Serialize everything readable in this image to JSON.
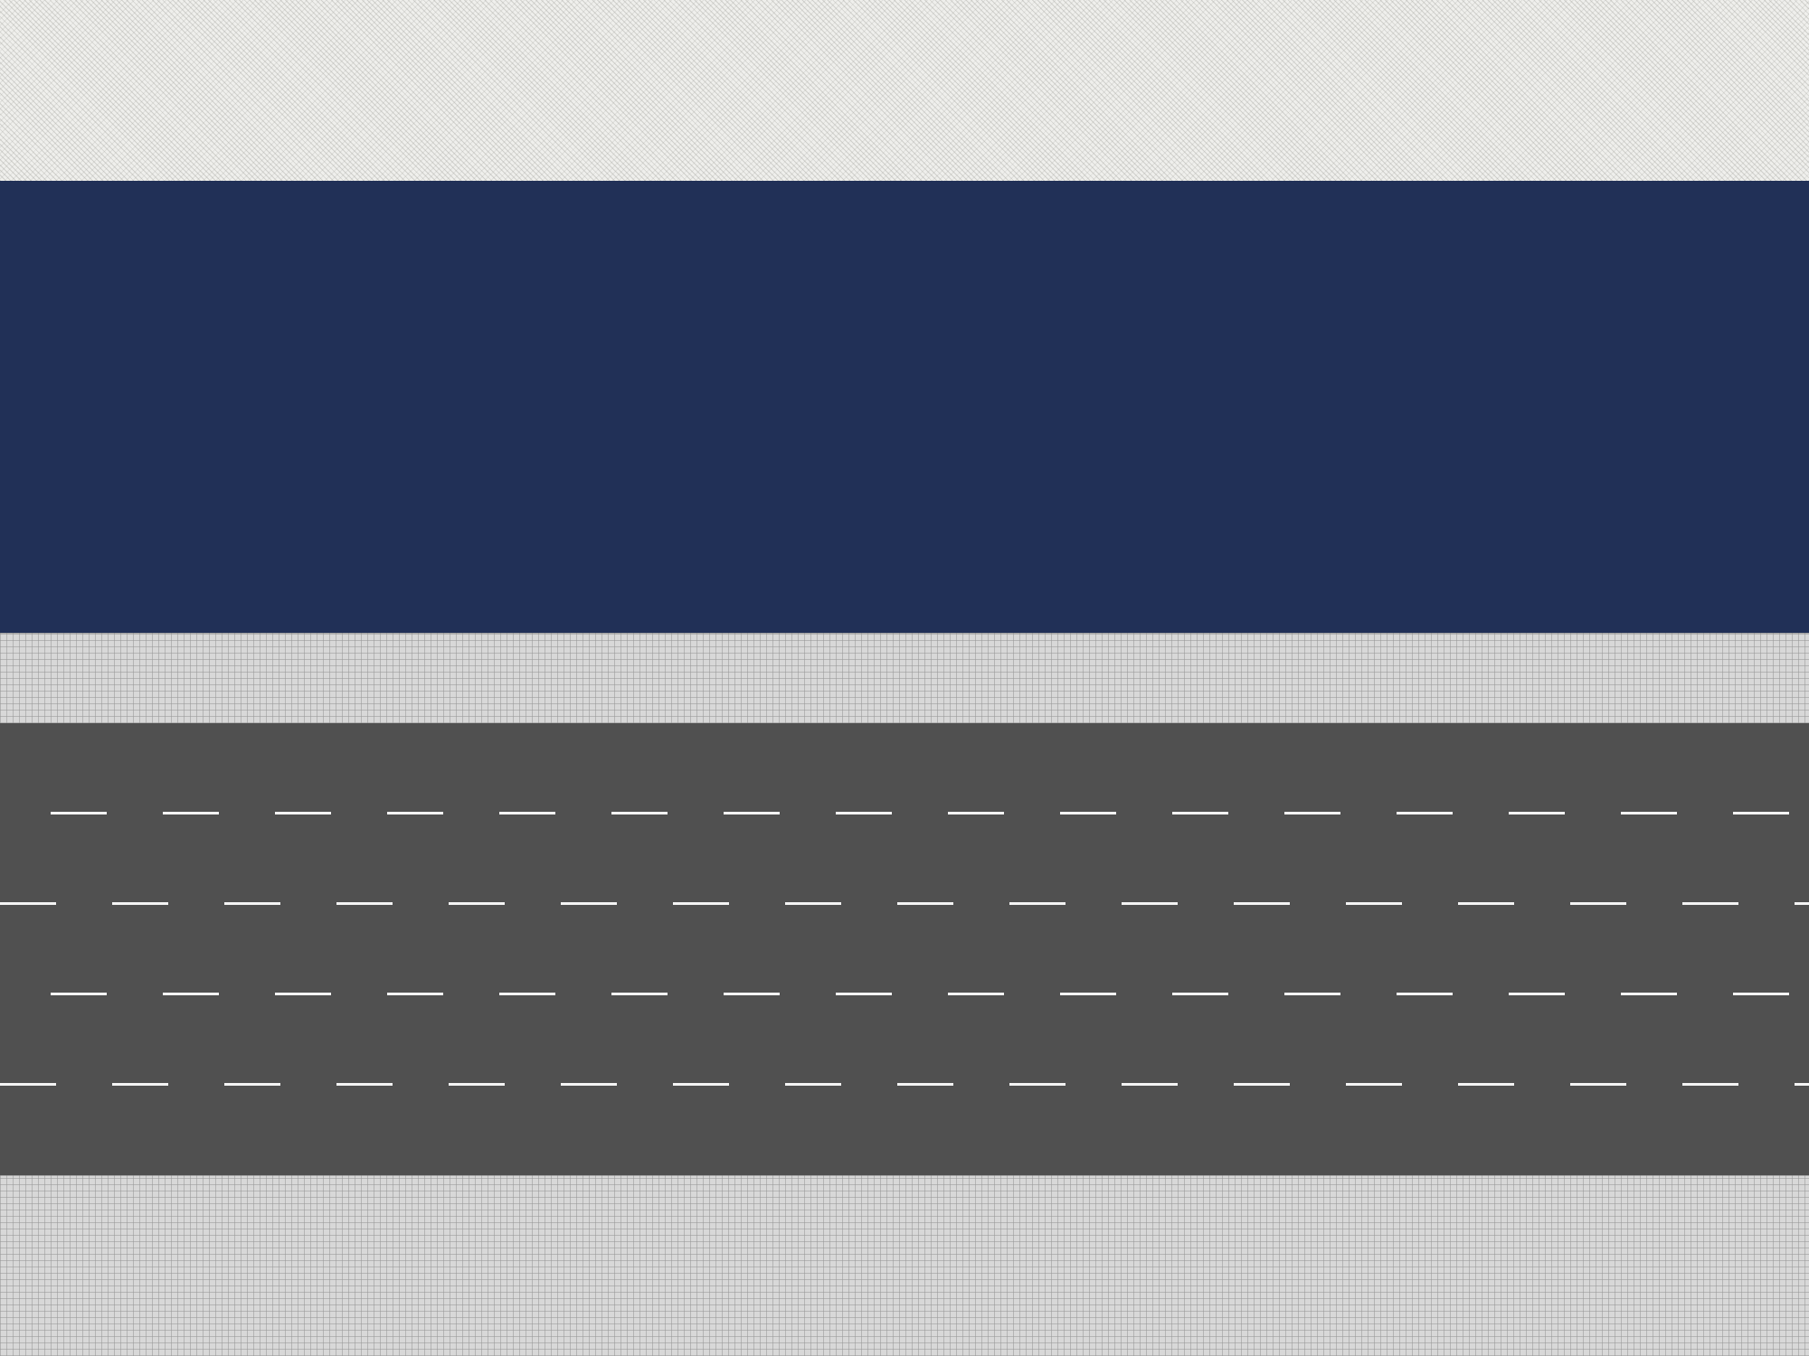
{
  "colors": {
    "river": "#213057",
    "road": "#505050",
    "lane_marking": "#f4f4f4",
    "sidewalk": "#d8d8d8",
    "sand": "#efefec"
  },
  "road": {
    "lane_count": 5
  }
}
